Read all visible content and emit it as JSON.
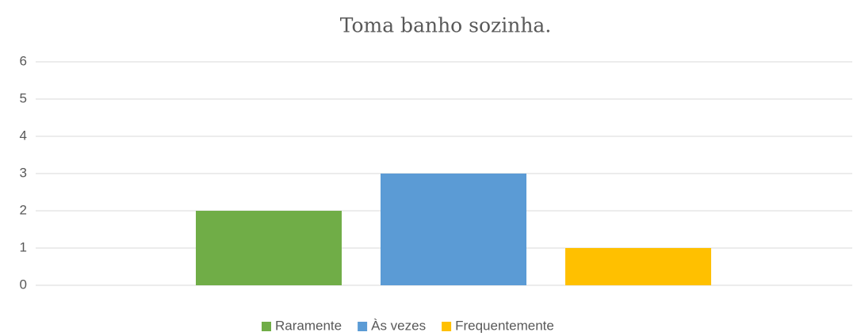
{
  "chart_data": {
    "type": "bar",
    "title": "Toma banho sozinha.",
    "series": [
      {
        "name": "Raramente",
        "color": "#70ad47",
        "values": [
          2
        ]
      },
      {
        "name": "Às vezes",
        "color": "#5b9bd5",
        "values": [
          3
        ]
      },
      {
        "name": "Frequentemente",
        "color": "#ffc000",
        "values": [
          1
        ]
      }
    ],
    "ylim": [
      0,
      6
    ],
    "yticks": [
      0,
      1,
      2,
      3,
      4,
      5,
      6
    ],
    "grid": true,
    "legend": "bottom"
  }
}
